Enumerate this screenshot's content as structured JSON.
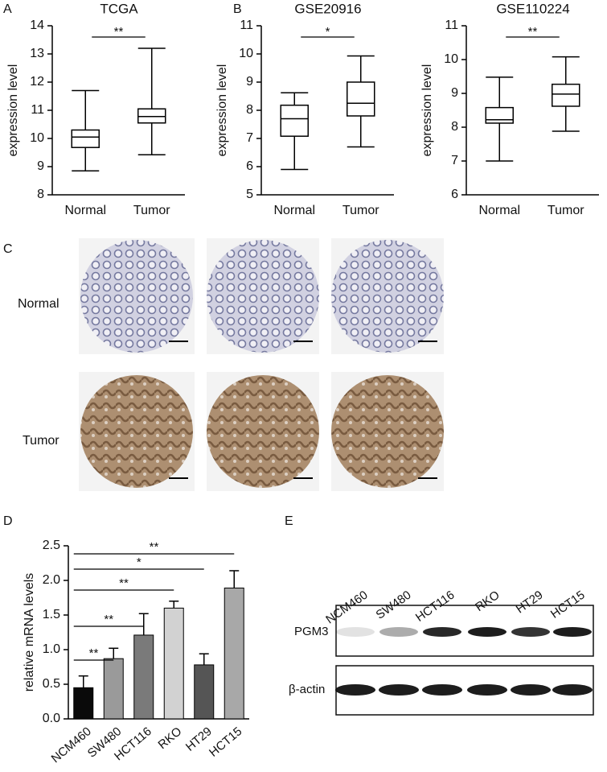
{
  "panel_labels": [
    "A",
    "B",
    "C",
    "D",
    "E"
  ],
  "chart_data": [
    {
      "type": "box",
      "title": "TCGA",
      "ylabel": "expression level",
      "categories": [
        "Normal",
        "Tumor"
      ],
      "min": [
        8.85,
        9.42
      ],
      "q1": [
        9.68,
        10.55
      ],
      "median": [
        10.05,
        10.78
      ],
      "q3": [
        10.3,
        11.05
      ],
      "max": [
        11.7,
        13.2
      ],
      "ylim": [
        8,
        14
      ],
      "yticks": [
        8,
        9,
        10,
        11,
        12,
        13,
        14
      ],
      "annotation": "**"
    },
    {
      "type": "box",
      "title": "GSE20916",
      "ylabel": "expression level",
      "categories": [
        "Normal",
        "Tumor"
      ],
      "min": [
        5.9,
        6.7
      ],
      "q1": [
        7.08,
        7.8
      ],
      "median": [
        7.7,
        8.25
      ],
      "q3": [
        8.18,
        9.0
      ],
      "max": [
        8.62,
        9.93
      ],
      "ylim": [
        5,
        11
      ],
      "yticks": [
        5,
        6,
        7,
        8,
        9,
        10,
        11
      ],
      "annotation": "*"
    },
    {
      "type": "box",
      "title": "GSE110224",
      "ylabel": "expression level",
      "categories": [
        "Normal",
        "Tumor"
      ],
      "min": [
        7.0,
        7.88
      ],
      "q1": [
        8.12,
        8.62
      ],
      "median": [
        8.22,
        8.98
      ],
      "q3": [
        8.58,
        9.27
      ],
      "max": [
        9.48,
        10.08
      ],
      "ylim": [
        6,
        11
      ],
      "yticks": [
        6,
        7,
        8,
        9,
        10,
        11
      ],
      "annotation": "**"
    },
    {
      "type": "bar",
      "ylabel": "relative mRNA levels",
      "categories": [
        "NCM460",
        "SW480",
        "HCT116",
        "RKO",
        "HT29",
        "HCT15"
      ],
      "values": [
        0.45,
        0.87,
        1.21,
        1.6,
        0.78,
        1.89
      ],
      "errors": [
        0.17,
        0.15,
        0.31,
        0.1,
        0.16,
        0.25
      ],
      "colors": [
        "#0a0a0a",
        "#9a9a9a",
        "#7a7a7a",
        "#d2d2d2",
        "#555555",
        "#a8a8a8"
      ],
      "ylim": [
        0,
        2.5
      ],
      "yticks": [
        {
          "value": 0,
          "label": "0.0"
        },
        0.5,
        {
          "value": 1,
          "label": "1.0"
        },
        1.5,
        {
          "value": 2,
          "label": "2.0"
        },
        2.5
      ],
      "comparisons": [
        {
          "from": "NCM460",
          "to": "SW480",
          "label": "**"
        },
        {
          "from": "NCM460",
          "to": "HCT116",
          "label": "**"
        },
        {
          "from": "NCM460",
          "to": "RKO",
          "label": "**"
        },
        {
          "from": "NCM460",
          "to": "HT29",
          "label": "*"
        },
        {
          "from": "NCM460",
          "to": "HCT15",
          "label": "**"
        }
      ]
    }
  ],
  "ihc": {
    "row_labels": [
      "Normal",
      "Tumor"
    ]
  },
  "blot": {
    "lanes": [
      "NCM460",
      "SW480",
      "HCT116",
      "RKO",
      "HT29",
      "HCT15"
    ],
    "rows": [
      "PGM3",
      "β-actin"
    ]
  }
}
